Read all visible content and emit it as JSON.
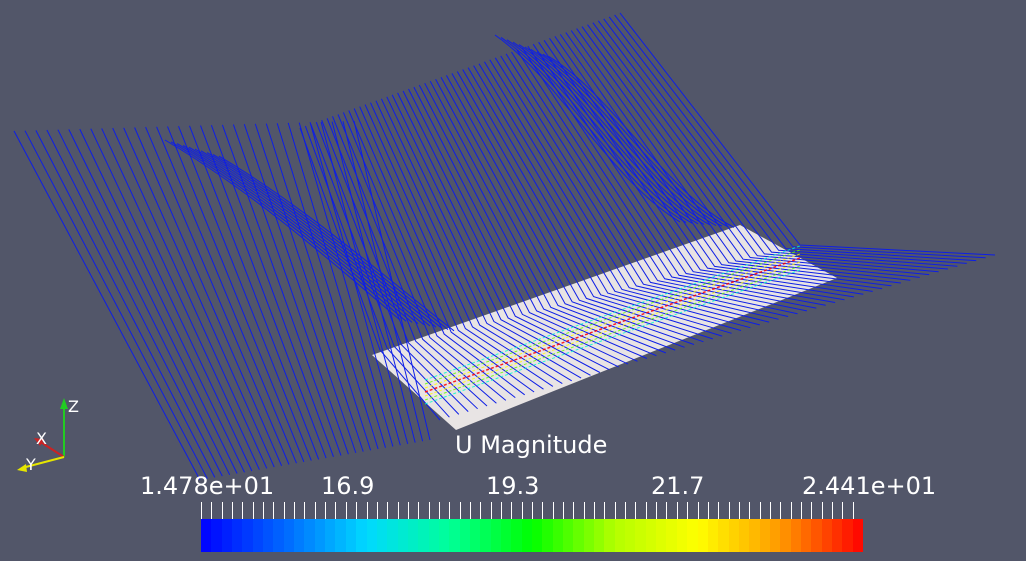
{
  "colorbar": {
    "title": "U Magnitude",
    "range": [
      14.78,
      24.41
    ],
    "tick_labels": [
      "1.478e+01",
      "16.9",
      "19.3",
      "21.7",
      "2.441e+01"
    ],
    "tick_values": [
      14.78,
      16.9,
      19.3,
      21.7,
      24.41
    ],
    "colormap": [
      "#0000ff",
      "#0066ff",
      "#00d9ff",
      "#00ff99",
      "#00ff00",
      "#b3ff00",
      "#ffff00",
      "#ff9900",
      "#ff0000"
    ]
  },
  "scene": {
    "background": "#525669",
    "plate_color": "#e8e4e4",
    "streamline_color": "#0d1ee6"
  },
  "axes_triad": {
    "x": "X",
    "y": "Y",
    "z": "Z"
  }
}
